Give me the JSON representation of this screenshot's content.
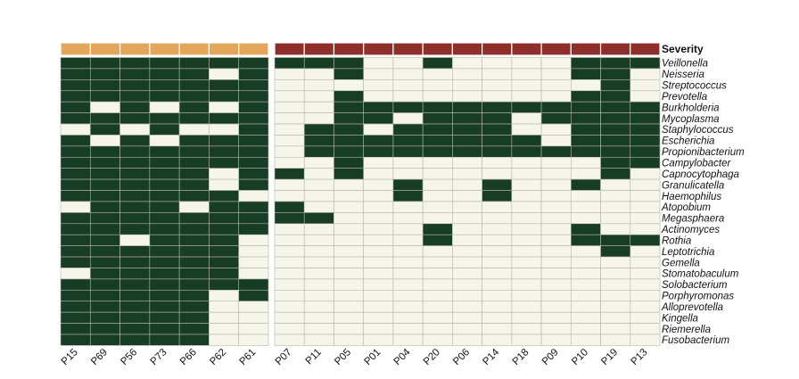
{
  "chart_data": {
    "type": "heatmap",
    "annotation_label": "Severity",
    "colors": {
      "present": "#173d26",
      "absent": "#f6f5ea",
      "group_mild": "#e3a65b",
      "group_severe": "#8e2f2b"
    },
    "columns": [
      "P15",
      "P69",
      "P56",
      "P73",
      "P66",
      "P62",
      "P61",
      "P07",
      "P11",
      "P05",
      "P01",
      "P04",
      "P20",
      "P06",
      "P14",
      "P18",
      "P09",
      "P10",
      "P19",
      "P13"
    ],
    "column_groups": [
      "mild",
      "mild",
      "mild",
      "mild",
      "mild",
      "mild",
      "mild",
      "severe",
      "severe",
      "severe",
      "severe",
      "severe",
      "severe",
      "severe",
      "severe",
      "severe",
      "severe",
      "severe",
      "severe",
      "severe"
    ],
    "rows": [
      "Veillonella",
      "Neisseria",
      "Streptococcus",
      "Prevotella",
      "Burkholderia",
      "Mycoplasma",
      "Staphylococcus",
      "Escherichia",
      "Propionibacterium",
      "Campylobacter",
      "Capnocytophaga",
      "Granulicatella",
      "Haemophilus",
      "Atopobium",
      "Megasphaera",
      "Actinomyces",
      "Rothia",
      "Leptotrichia",
      "Gemella",
      "Stomatobaculum",
      "Solobacterium",
      "Porphyromonas",
      "Alloprevotella",
      "Kingella",
      "Riemerella",
      "Fusobacterium"
    ],
    "matrix": [
      [
        1,
        1,
        1,
        1,
        1,
        1,
        1,
        1,
        1,
        1,
        0,
        0,
        1,
        0,
        0,
        0,
        0,
        1,
        1,
        1
      ],
      [
        1,
        1,
        1,
        1,
        1,
        0,
        1,
        0,
        0,
        1,
        0,
        0,
        0,
        0,
        0,
        0,
        0,
        1,
        1,
        0
      ],
      [
        1,
        1,
        1,
        1,
        1,
        1,
        1,
        0,
        0,
        0,
        0,
        0,
        0,
        0,
        0,
        0,
        0,
        0,
        1,
        0
      ],
      [
        1,
        1,
        1,
        1,
        1,
        1,
        1,
        0,
        0,
        1,
        0,
        0,
        0,
        0,
        0,
        0,
        0,
        1,
        1,
        0
      ],
      [
        1,
        0,
        1,
        0,
        1,
        0,
        1,
        0,
        0,
        1,
        1,
        1,
        1,
        1,
        1,
        1,
        1,
        1,
        1,
        1
      ],
      [
        1,
        1,
        1,
        1,
        1,
        1,
        1,
        0,
        0,
        1,
        1,
        0,
        1,
        1,
        1,
        0,
        1,
        1,
        1,
        1
      ],
      [
        0,
        1,
        0,
        1,
        0,
        0,
        1,
        0,
        1,
        1,
        0,
        1,
        1,
        1,
        1,
        0,
        0,
        1,
        1,
        1
      ],
      [
        1,
        0,
        1,
        0,
        1,
        1,
        1,
        0,
        1,
        1,
        1,
        1,
        1,
        1,
        1,
        1,
        0,
        1,
        1,
        1
      ],
      [
        1,
        1,
        1,
        1,
        1,
        1,
        1,
        0,
        1,
        1,
        1,
        1,
        1,
        1,
        1,
        1,
        1,
        1,
        1,
        1
      ],
      [
        1,
        1,
        1,
        1,
        1,
        1,
        1,
        0,
        0,
        1,
        0,
        0,
        0,
        0,
        0,
        0,
        0,
        0,
        1,
        1
      ],
      [
        1,
        1,
        1,
        1,
        1,
        0,
        1,
        1,
        0,
        1,
        0,
        0,
        0,
        0,
        0,
        0,
        0,
        0,
        1,
        0
      ],
      [
        1,
        1,
        1,
        1,
        1,
        0,
        1,
        0,
        0,
        0,
        0,
        1,
        0,
        0,
        1,
        0,
        0,
        1,
        0,
        0
      ],
      [
        1,
        1,
        1,
        1,
        1,
        1,
        0,
        0,
        0,
        0,
        0,
        1,
        0,
        0,
        1,
        0,
        0,
        0,
        0,
        0
      ],
      [
        0,
        1,
        1,
        1,
        0,
        1,
        1,
        1,
        0,
        0,
        0,
        0,
        0,
        0,
        0,
        0,
        0,
        0,
        0,
        0
      ],
      [
        1,
        1,
        1,
        1,
        1,
        1,
        1,
        1,
        1,
        0,
        0,
        0,
        0,
        0,
        0,
        0,
        0,
        0,
        0,
        0
      ],
      [
        1,
        1,
        1,
        1,
        1,
        1,
        1,
        0,
        0,
        0,
        0,
        0,
        1,
        0,
        0,
        0,
        0,
        1,
        0,
        0
      ],
      [
        1,
        1,
        0,
        1,
        1,
        1,
        0,
        0,
        0,
        0,
        0,
        0,
        1,
        0,
        0,
        0,
        0,
        1,
        1,
        1
      ],
      [
        1,
        1,
        1,
        1,
        1,
        1,
        0,
        0,
        0,
        0,
        0,
        0,
        0,
        0,
        0,
        0,
        0,
        0,
        1,
        0
      ],
      [
        1,
        1,
        1,
        1,
        1,
        1,
        0,
        0,
        0,
        0,
        0,
        0,
        0,
        0,
        0,
        0,
        0,
        0,
        0,
        0
      ],
      [
        0,
        1,
        1,
        1,
        1,
        1,
        0,
        0,
        0,
        0,
        0,
        0,
        0,
        0,
        0,
        0,
        0,
        0,
        0,
        0
      ],
      [
        1,
        1,
        1,
        1,
        1,
        1,
        1,
        0,
        0,
        0,
        0,
        0,
        0,
        0,
        0,
        0,
        0,
        0,
        0,
        0
      ],
      [
        1,
        1,
        1,
        1,
        1,
        0,
        1,
        0,
        0,
        0,
        0,
        0,
        0,
        0,
        0,
        0,
        0,
        0,
        0,
        0
      ],
      [
        1,
        1,
        1,
        1,
        1,
        0,
        0,
        0,
        0,
        0,
        0,
        0,
        0,
        0,
        0,
        0,
        0,
        0,
        0,
        0
      ],
      [
        1,
        1,
        1,
        1,
        1,
        0,
        0,
        0,
        0,
        0,
        0,
        0,
        0,
        0,
        0,
        0,
        0,
        0,
        0,
        0
      ],
      [
        1,
        1,
        1,
        1,
        1,
        0,
        0,
        0,
        0,
        0,
        0,
        0,
        0,
        0,
        0,
        0,
        0,
        0,
        0,
        0
      ],
      [
        1,
        1,
        1,
        1,
        1,
        0,
        0,
        0,
        0,
        0,
        0,
        0,
        0,
        0,
        0,
        0,
        0,
        0,
        0,
        0
      ]
    ]
  }
}
